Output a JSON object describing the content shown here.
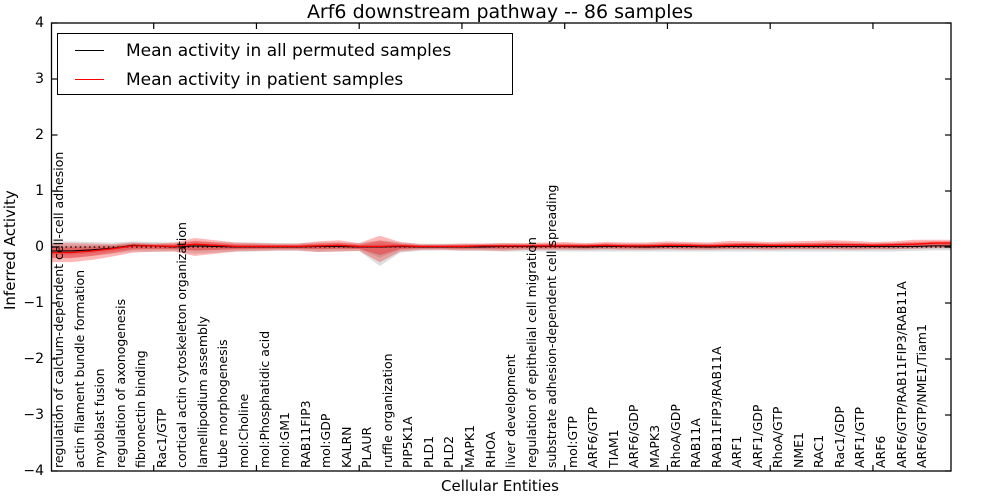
{
  "chart_data": {
    "type": "line",
    "title": "Arf6 downstream pathway -- 86 samples",
    "xlabel": "Cellular Entities",
    "ylabel": "Inferred Activity",
    "ylim": [
      -4,
      4
    ],
    "grid": false,
    "legend_position": "upper left",
    "legend": [
      {
        "label": "Mean activity in all permuted samples",
        "color": "#000000"
      },
      {
        "label": "Mean activity in patient samples",
        "color": "#ff0000"
      }
    ],
    "yticks": {
      "labels": [
        "4",
        "3",
        "2",
        "1",
        "0",
        "−1",
        "−2",
        "−3",
        "−4"
      ],
      "values": [
        4,
        3,
        2,
        1,
        0,
        -1,
        -2,
        -3,
        -4
      ]
    },
    "xtick_positions": [
      5,
      10,
      15,
      20,
      25,
      30,
      35,
      40
    ],
    "baseline": 0,
    "categories": [
      "regulation of calcium-dependent cell-cell adhesion",
      "actin filament bundle formation",
      "myoblast fusion",
      "regulation of axonogenesis",
      "fibronectin binding",
      "Rac1/GTP",
      "cortical actin cytoskeleton organization",
      "lamellipodium assembly",
      "tube morphogenesis",
      "mol:Choline",
      "mol:Phosphatidic acid",
      "mol:GM1",
      "RAB11FIP3",
      "mol:GDP",
      "KALRN",
      "PLAUR",
      "ruffle organization",
      "PIP5K1A",
      "PLD1",
      "PLD2",
      "MAPK1",
      "RHOA",
      "liver development",
      "regulation of epithelial cell migration",
      "substrate adhesion-dependent cell spreading",
      "mol:GTP",
      "ARF6/GTP",
      "TIAM1",
      "ARF6/GDP",
      "MAPK3",
      "RhoA/GDP",
      "RAB11A",
      "RAB11FIP3/RAB11A",
      "ARF1",
      "ARF1/GDP",
      "RhoA/GTP",
      "NME1",
      "RAC1",
      "Rac1/GDP",
      "ARF1/GTP",
      "ARF6",
      "ARF6/GTP/RAB11FIP3/RAB11A",
      "ARF6/GTP/NME1/Tiam1"
    ],
    "series": [
      {
        "name": "Mean activity in all permuted samples",
        "color": "#000000",
        "style": "solid",
        "values": [
          -0.07,
          -0.05,
          -0.02,
          0.03,
          0.02,
          0.0,
          0.02,
          0.01,
          0.0,
          0.0,
          0.0,
          0.0,
          0.01,
          0.01,
          0.0,
          0.0,
          0.01,
          0.0,
          0.0,
          0.0,
          0.0,
          0.01,
          0.01,
          0.01,
          0.01,
          0.0,
          0.01,
          0.01,
          0.0,
          0.01,
          0.01,
          0.0,
          0.01,
          0.01,
          0.01,
          0.01,
          0.01,
          0.01,
          0.01,
          0.01,
          0.01,
          0.01,
          0.02
        ]
      },
      {
        "name": "Mean activity in patient samples",
        "color": "#ff0000",
        "style": "solid",
        "values": [
          -0.1,
          -0.07,
          -0.03,
          0.02,
          0.02,
          0.01,
          0.05,
          0.03,
          0.01,
          0.01,
          0.01,
          0.01,
          0.02,
          0.03,
          0.01,
          0.01,
          0.02,
          0.01,
          0.01,
          0.01,
          0.02,
          0.02,
          0.02,
          0.02,
          0.02,
          0.02,
          0.03,
          0.02,
          0.02,
          0.03,
          0.03,
          0.02,
          0.03,
          0.04,
          0.03,
          0.03,
          0.03,
          0.04,
          0.04,
          0.03,
          0.04,
          0.05,
          0.07
        ]
      }
    ],
    "bands": [
      {
        "name": "permuted samples range",
        "color": "rgba(0,0,0,0.13)",
        "upper": [
          0.1,
          0.09,
          0.08,
          0.1,
          0.09,
          0.08,
          0.1,
          0.09,
          0.08,
          0.08,
          0.07,
          0.07,
          0.08,
          0.08,
          0.07,
          0.12,
          0.08,
          0.06,
          0.06,
          0.06,
          0.06,
          0.07,
          0.06,
          0.06,
          0.06,
          0.06,
          0.06,
          0.06,
          0.06,
          0.07,
          0.06,
          0.06,
          0.06,
          0.07,
          0.06,
          0.06,
          0.07,
          0.07,
          0.06,
          0.06,
          0.07,
          0.07,
          0.08
        ],
        "lower": [
          -0.2,
          -0.16,
          -0.12,
          -0.08,
          -0.09,
          -0.08,
          -0.12,
          -0.1,
          -0.08,
          -0.08,
          -0.07,
          -0.07,
          -0.09,
          -0.08,
          -0.07,
          -0.34,
          -0.1,
          -0.07,
          -0.06,
          -0.07,
          -0.07,
          -0.08,
          -0.08,
          -0.08,
          -0.08,
          -0.08,
          -0.08,
          -0.08,
          -0.08,
          -0.08,
          -0.08,
          -0.08,
          -0.08,
          -0.08,
          -0.08,
          -0.08,
          -0.08,
          -0.08,
          -0.08,
          -0.08,
          -0.08,
          -0.07,
          -0.06
        ]
      },
      {
        "name": "patient samples range",
        "color": "rgba(255,0,0,0.28)",
        "upper": [
          0.07,
          0.06,
          0.05,
          0.08,
          0.06,
          0.08,
          0.16,
          0.12,
          0.08,
          0.07,
          0.06,
          0.06,
          0.1,
          0.12,
          0.07,
          0.2,
          0.09,
          0.05,
          0.05,
          0.06,
          0.06,
          0.07,
          0.07,
          0.08,
          0.09,
          0.07,
          0.09,
          0.08,
          0.08,
          0.1,
          0.09,
          0.08,
          0.11,
          0.1,
          0.09,
          0.1,
          0.11,
          0.12,
          0.11,
          0.09,
          0.1,
          0.13,
          0.13
        ],
        "lower": [
          -0.27,
          -0.23,
          -0.17,
          -0.1,
          -0.08,
          -0.08,
          -0.16,
          -0.12,
          -0.08,
          -0.07,
          -0.06,
          -0.06,
          -0.09,
          -0.08,
          -0.07,
          -0.27,
          -0.08,
          -0.05,
          -0.05,
          -0.06,
          -0.06,
          -0.07,
          -0.05,
          -0.05,
          -0.05,
          -0.05,
          -0.04,
          -0.05,
          -0.05,
          -0.04,
          -0.05,
          -0.05,
          -0.04,
          -0.04,
          -0.05,
          -0.04,
          -0.04,
          -0.04,
          -0.05,
          -0.04,
          -0.04,
          -0.03,
          -0.02
        ]
      }
    ]
  }
}
